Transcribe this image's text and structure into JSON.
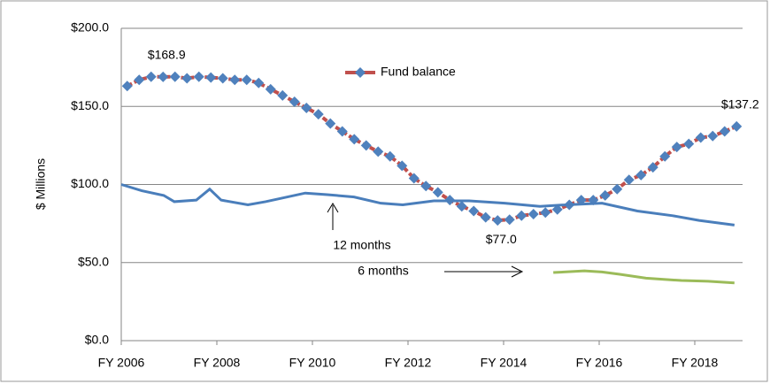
{
  "chart_data": {
    "type": "line",
    "y_label": "$ Millions",
    "xlim": [
      2006,
      2019
    ],
    "ylim": [
      0,
      200
    ],
    "xticks": [
      {
        "value": 2006,
        "label": "FY 2006"
      },
      {
        "value": 2008,
        "label": "FY 2008"
      },
      {
        "value": 2010,
        "label": "FY 2010"
      },
      {
        "value": 2012,
        "label": "FY 2012"
      },
      {
        "value": 2014,
        "label": "FY 2014"
      },
      {
        "value": 2016,
        "label": "FY 2016"
      },
      {
        "value": 2018,
        "label": "FY 2018"
      }
    ],
    "yticks": [
      {
        "value": 0,
        "label": "$0.0"
      },
      {
        "value": 50,
        "label": "$50.0"
      },
      {
        "value": 100,
        "label": "$100.0"
      },
      {
        "value": 150,
        "label": "$150.0"
      },
      {
        "value": 200,
        "label": "$200.0"
      }
    ],
    "grid": true,
    "series": [
      {
        "name": "Fund balance",
        "color": "#c0504d",
        "marker_color": "#4f81bd",
        "legend": true,
        "x": [
          2006.125,
          2006.375,
          2006.625,
          2006.875,
          2007.125,
          2007.375,
          2007.625,
          2007.875,
          2008.125,
          2008.375,
          2008.625,
          2008.875,
          2009.125,
          2009.375,
          2009.625,
          2009.875,
          2010.125,
          2010.375,
          2010.625,
          2010.875,
          2011.125,
          2011.375,
          2011.625,
          2011.875,
          2012.125,
          2012.375,
          2012.625,
          2012.875,
          2013.125,
          2013.375,
          2013.625,
          2013.875,
          2014.125,
          2014.375,
          2014.625,
          2014.875,
          2015.125,
          2015.375,
          2015.625,
          2015.875,
          2016.125,
          2016.375,
          2016.625,
          2016.875,
          2017.125,
          2017.375,
          2017.625,
          2017.875,
          2018.125,
          2018.375,
          2018.625,
          2018.875
        ],
        "values": [
          163,
          167,
          169,
          168.9,
          169,
          168,
          169,
          168.5,
          168,
          167,
          167,
          165,
          161,
          157,
          153,
          149,
          145,
          139,
          134,
          129,
          125,
          121,
          118,
          112,
          104,
          99,
          95,
          90,
          86,
          83,
          79,
          77,
          77.5,
          80,
          81,
          82,
          84,
          87,
          90,
          90,
          93,
          97,
          103,
          106,
          111,
          118,
          124,
          126,
          130,
          131,
          134,
          137.2
        ],
        "value_labels": [
          null,
          null,
          null,
          "$168.9",
          null,
          null,
          null,
          null,
          null,
          null,
          null,
          null,
          null,
          null,
          null,
          null,
          null,
          null,
          null,
          null,
          null,
          null,
          null,
          null,
          null,
          null,
          null,
          null,
          null,
          null,
          null,
          "$77.0",
          null,
          null,
          null,
          null,
          null,
          null,
          null,
          null,
          null,
          null,
          null,
          null,
          null,
          null,
          null,
          null,
          null,
          null,
          null,
          "$137.2"
        ]
      },
      {
        "name": "12 months",
        "color": "#4a7ebb",
        "legend": false,
        "x": [
          2006,
          2006.43,
          2006.89,
          2007.11,
          2007.57,
          2007.85,
          2008.09,
          2008.65,
          2009.02,
          2009.85,
          2010.31,
          2010.87,
          2011.43,
          2011.89,
          2012.54,
          2013.28,
          2014.02,
          2014.76,
          2015.31,
          2016.06,
          2016.8,
          2017.54,
          2018.09,
          2018.83
        ],
        "values": [
          100,
          96,
          93,
          89,
          90,
          97,
          90,
          87,
          89,
          94.5,
          93.5,
          92,
          88,
          87,
          89.5,
          89.5,
          88,
          86,
          87,
          88,
          83,
          80,
          77,
          74
        ]
      },
      {
        "name": "6 months",
        "color": "#9bbb59",
        "legend": false,
        "x": [
          2015.04,
          2015.69,
          2016.06,
          2016.43,
          2016.98,
          2017.72,
          2018.28,
          2018.83
        ],
        "values": [
          43.6,
          44.7,
          44,
          42.5,
          40,
          38.5,
          38,
          37
        ]
      }
    ]
  }
}
